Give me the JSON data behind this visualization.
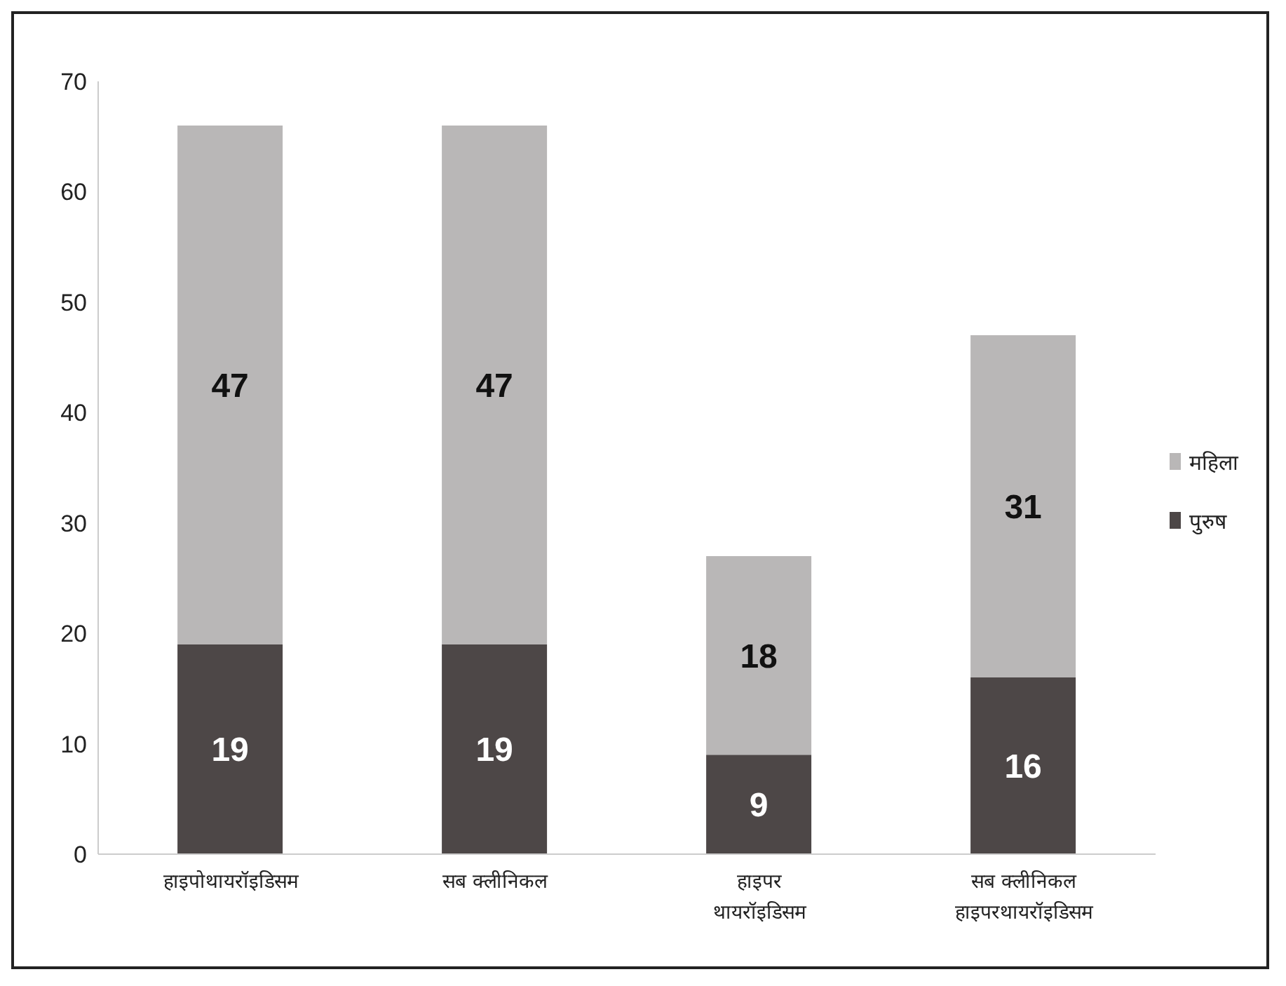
{
  "chart_data": {
    "type": "bar",
    "stacked": true,
    "categories": [
      "हाइपोथायरॉइडिसम",
      "सब क्लीनिकल",
      "हाइपर\nथायरॉइडिसम",
      "सब क्लीनिकल\nहाइपरथायरॉइडिसम"
    ],
    "series": [
      {
        "name": "पुरुष",
        "color": "#4d4747",
        "values": [
          19,
          19,
          9,
          16
        ]
      },
      {
        "name": "महिला",
        "color": "#b9b7b7",
        "values": [
          47,
          47,
          18,
          31
        ]
      }
    ],
    "ylim": [
      0,
      70
    ],
    "yticks": [
      0,
      10,
      20,
      30,
      40,
      50,
      60,
      70
    ],
    "grid": false,
    "legend": "right",
    "data_labels": true
  }
}
